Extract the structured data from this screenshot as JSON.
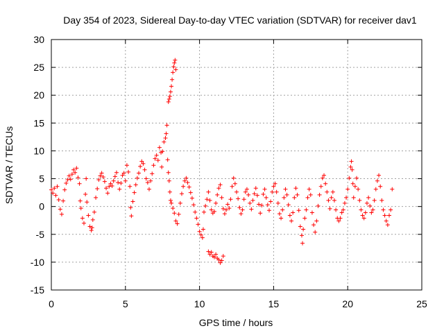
{
  "chart_data": {
    "type": "scatter",
    "title": "Day 354 of 2023, Sidereal Day-to-day VTEC variation (SDTVAR) for receiver dav1",
    "xlabel": "GPS time / hours",
    "ylabel": "SDTVAR / TECUs",
    "xlim": [
      0,
      25
    ],
    "ylim": [
      -15,
      30
    ],
    "xticks": [
      "0",
      "5",
      "10",
      "15",
      "20",
      "25"
    ],
    "yticks": [
      "-15",
      "-10",
      "-5",
      "0",
      "5",
      "10",
      "15",
      "20",
      "25",
      "30"
    ],
    "grid": true,
    "marker": "+",
    "color": "#ff0000",
    "series": [
      {
        "name": "SDTVAR",
        "points": [
          [
            0.0,
            3.0
          ],
          [
            0.1,
            2.4
          ],
          [
            0.2,
            3.3
          ],
          [
            0.3,
            2.0
          ],
          [
            0.4,
            3.6
          ],
          [
            0.5,
            1.2
          ],
          [
            0.6,
            -0.5
          ],
          [
            0.7,
            -1.4
          ],
          [
            0.8,
            1.0
          ],
          [
            0.9,
            3.0
          ],
          [
            1.0,
            4.2
          ],
          [
            1.1,
            4.8
          ],
          [
            1.2,
            5.5
          ],
          [
            1.3,
            4.9
          ],
          [
            1.4,
            5.8
          ],
          [
            1.5,
            6.6
          ],
          [
            1.6,
            6.1
          ],
          [
            1.7,
            6.9
          ],
          [
            1.8,
            5.2
          ],
          [
            1.9,
            4.1
          ],
          [
            1.95,
            1.0
          ],
          [
            2.0,
            -0.3
          ],
          [
            2.1,
            -2.1
          ],
          [
            2.2,
            -3.0
          ],
          [
            2.3,
            2.2
          ],
          [
            2.35,
            5.0
          ],
          [
            2.4,
            0.8
          ],
          [
            2.5,
            -1.6
          ],
          [
            2.6,
            -3.6
          ],
          [
            2.7,
            -4.3
          ],
          [
            2.75,
            -3.8
          ],
          [
            2.8,
            -2.4
          ],
          [
            2.9,
            -1.0
          ],
          [
            3.0,
            1.6
          ],
          [
            3.1,
            3.2
          ],
          [
            3.2,
            4.8
          ],
          [
            3.3,
            5.5
          ],
          [
            3.4,
            6.0
          ],
          [
            3.5,
            5.3
          ],
          [
            3.6,
            4.5
          ],
          [
            3.7,
            3.3
          ],
          [
            3.8,
            2.4
          ],
          [
            3.9,
            3.6
          ],
          [
            4.0,
            4.1
          ],
          [
            4.1,
            3.7
          ],
          [
            4.2,
            4.6
          ],
          [
            4.3,
            5.4
          ],
          [
            4.4,
            6.1
          ],
          [
            4.5,
            4.3
          ],
          [
            4.6,
            3.1
          ],
          [
            4.7,
            4.2
          ],
          [
            4.8,
            5.6
          ],
          [
            4.9,
            6.0
          ],
          [
            5.0,
            4.6
          ],
          [
            5.1,
            7.4
          ],
          [
            5.2,
            6.2
          ],
          [
            5.3,
            3.6
          ],
          [
            5.35,
            -0.2
          ],
          [
            5.4,
            -1.7
          ],
          [
            5.5,
            0.9
          ],
          [
            5.6,
            2.5
          ],
          [
            5.7,
            3.9
          ],
          [
            5.8,
            5.1
          ],
          [
            5.9,
            6.0
          ],
          [
            6.0,
            7.2
          ],
          [
            6.1,
            8.1
          ],
          [
            6.2,
            7.7
          ],
          [
            6.3,
            6.6
          ],
          [
            6.4,
            5.0
          ],
          [
            6.5,
            4.3
          ],
          [
            6.6,
            3.1
          ],
          [
            6.7,
            4.6
          ],
          [
            6.8,
            5.9
          ],
          [
            6.9,
            7.4
          ],
          [
            7.0,
            8.6
          ],
          [
            7.1,
            9.2
          ],
          [
            7.2,
            8.3
          ],
          [
            7.3,
            10.6
          ],
          [
            7.4,
            9.7
          ],
          [
            7.45,
            7.1
          ],
          [
            7.5,
            9.9
          ],
          [
            7.6,
            11.6
          ],
          [
            7.7,
            12.3
          ],
          [
            7.75,
            13.1
          ],
          [
            7.8,
            14.6
          ],
          [
            7.85,
            8.4
          ],
          [
            7.9,
            6.1
          ],
          [
            7.95,
            4.6
          ],
          [
            8.0,
            2.6
          ],
          [
            8.05,
            1.1
          ],
          [
            8.1,
            0.6
          ],
          [
            8.2,
            -0.3
          ],
          [
            8.3,
            -1.2
          ],
          [
            8.4,
            -2.6
          ],
          [
            8.5,
            -3.1
          ],
          [
            8.6,
            -1.4
          ],
          [
            8.7,
            0.6
          ],
          [
            8.8,
            2.3
          ],
          [
            8.9,
            3.6
          ],
          [
            9.0,
            4.6
          ],
          [
            9.1,
            5.1
          ],
          [
            9.2,
            4.3
          ],
          [
            9.3,
            3.5
          ],
          [
            9.4,
            2.5
          ],
          [
            9.5,
            1.5
          ],
          [
            9.6,
            0.3
          ],
          [
            9.7,
            -1.0
          ],
          [
            9.8,
            -2.1
          ],
          [
            9.9,
            -3.2
          ],
          [
            10.0,
            -4.5
          ],
          [
            10.1,
            -5.1
          ],
          [
            10.2,
            -5.6
          ],
          [
            10.25,
            -4.1
          ],
          [
            10.3,
            -1.0
          ],
          [
            10.4,
            0.1
          ],
          [
            10.5,
            1.3
          ],
          [
            10.6,
            2.6
          ],
          [
            10.7,
            1.1
          ],
          [
            10.8,
            -0.6
          ],
          [
            10.9,
            -1.2
          ],
          [
            11.0,
            -0.9
          ],
          [
            11.1,
            0.6
          ],
          [
            11.2,
            2.1
          ],
          [
            11.3,
            3.3
          ],
          [
            11.4,
            3.9
          ],
          [
            11.5,
            1.6
          ],
          [
            11.6,
            -0.4
          ],
          [
            11.7,
            -1.3
          ],
          [
            11.8,
            -0.6
          ],
          [
            11.9,
            0.4
          ],
          [
            12.0,
            -0.3
          ],
          [
            12.1,
            1.3
          ],
          [
            12.2,
            3.6
          ],
          [
            12.3,
            5.1
          ],
          [
            12.4,
            4.1
          ],
          [
            12.5,
            2.6
          ],
          [
            12.6,
            1.4
          ],
          [
            12.7,
            -0.2
          ],
          [
            12.8,
            -1.3
          ],
          [
            12.9,
            -0.6
          ],
          [
            13.0,
            1.3
          ],
          [
            13.1,
            2.6
          ],
          [
            13.2,
            3.1
          ],
          [
            13.3,
            2.1
          ],
          [
            13.4,
            0.6
          ],
          [
            13.5,
            -0.5
          ],
          [
            13.6,
            1.1
          ],
          [
            13.7,
            2.3
          ],
          [
            13.8,
            3.3
          ],
          [
            13.9,
            2.0
          ],
          [
            14.0,
            0.4
          ],
          [
            14.1,
            -1.2
          ],
          [
            14.2,
            0.2
          ],
          [
            14.3,
            2.2
          ],
          [
            14.4,
            3.1
          ],
          [
            14.5,
            1.6
          ],
          [
            14.6,
            0.3
          ],
          [
            14.7,
            -0.7
          ],
          [
            14.8,
            0.9
          ],
          [
            14.9,
            2.6
          ],
          [
            15.0,
            3.6
          ],
          [
            15.1,
            4.1
          ],
          [
            15.2,
            2.6
          ],
          [
            15.3,
            0.6
          ],
          [
            15.4,
            -1.3
          ],
          [
            15.5,
            -2.1
          ],
          [
            15.6,
            -0.6
          ],
          [
            15.7,
            1.6
          ],
          [
            15.8,
            3.1
          ],
          [
            15.9,
            2.1
          ],
          [
            16.0,
            0.3
          ],
          [
            16.1,
            -1.6
          ],
          [
            16.2,
            -2.6
          ],
          [
            16.3,
            -1.1
          ],
          [
            16.4,
            1.6
          ],
          [
            16.5,
            3.3
          ],
          [
            16.6,
            2.1
          ],
          [
            16.7,
            -0.7
          ],
          [
            16.8,
            -3.6
          ],
          [
            16.9,
            -5.2
          ],
          [
            16.95,
            -6.6
          ],
          [
            17.0,
            -4.1
          ],
          [
            17.1,
            -2.1
          ],
          [
            17.2,
            -0.6
          ],
          [
            17.3,
            1.6
          ],
          [
            17.4,
            3.1
          ],
          [
            17.5,
            2.1
          ],
          [
            17.6,
            -1.1
          ],
          [
            17.7,
            -3.3
          ],
          [
            17.8,
            -4.6
          ],
          [
            17.9,
            -2.6
          ],
          [
            18.0,
            0.1
          ],
          [
            18.1,
            2.1
          ],
          [
            18.2,
            3.6
          ],
          [
            18.3,
            5.1
          ],
          [
            18.4,
            5.6
          ],
          [
            18.5,
            4.1
          ],
          [
            18.6,
            2.6
          ],
          [
            18.7,
            1.1
          ],
          [
            18.8,
            -0.4
          ],
          [
            18.9,
            1.6
          ],
          [
            19.0,
            2.6
          ],
          [
            19.1,
            1.1
          ],
          [
            19.2,
            -0.6
          ],
          [
            19.3,
            -2.1
          ],
          [
            19.4,
            -2.6
          ],
          [
            19.5,
            -2.1
          ],
          [
            19.6,
            -1.1
          ],
          [
            19.7,
            -0.6
          ],
          [
            19.8,
            0.6
          ],
          [
            19.9,
            1.6
          ],
          [
            20.0,
            3.1
          ],
          [
            20.1,
            5.1
          ],
          [
            20.2,
            7.1
          ],
          [
            20.25,
            8.1
          ],
          [
            20.3,
            6.6
          ],
          [
            20.35,
            4.1
          ],
          [
            20.4,
            1.6
          ],
          [
            20.5,
            3.6
          ],
          [
            20.6,
            5.1
          ],
          [
            20.7,
            3.1
          ],
          [
            20.8,
            1.1
          ],
          [
            20.9,
            -0.6
          ],
          [
            21.0,
            -1.6
          ],
          [
            21.1,
            -2.1
          ],
          [
            21.2,
            -1.1
          ],
          [
            21.3,
            0.6
          ],
          [
            21.4,
            1.6
          ],
          [
            21.5,
            0.1
          ],
          [
            21.6,
            -1.1
          ],
          [
            21.7,
            -0.6
          ],
          [
            21.8,
            1.1
          ],
          [
            21.9,
            3.1
          ],
          [
            22.0,
            4.6
          ],
          [
            22.1,
            5.6
          ],
          [
            22.2,
            3.6
          ],
          [
            22.3,
            1.1
          ],
          [
            22.4,
            -0.6
          ],
          [
            22.5,
            -1.6
          ],
          [
            22.6,
            -2.6
          ],
          [
            22.7,
            -3.3
          ],
          [
            22.8,
            -1.6
          ],
          [
            22.9,
            -0.6
          ],
          [
            23.0,
            3.1
          ],
          [
            7.9,
            18.8
          ],
          [
            7.95,
            19.3
          ],
          [
            8.0,
            19.8
          ],
          [
            8.05,
            20.6
          ],
          [
            8.1,
            21.6
          ],
          [
            8.15,
            22.8
          ],
          [
            8.2,
            24.1
          ],
          [
            8.25,
            25.1
          ],
          [
            8.3,
            25.8
          ],
          [
            8.35,
            26.3
          ],
          [
            8.4,
            24.6
          ],
          [
            10.6,
            -8.1
          ],
          [
            10.7,
            -8.6
          ],
          [
            10.8,
            -8.2
          ],
          [
            10.9,
            -8.9
          ],
          [
            11.0,
            -9.1
          ],
          [
            11.1,
            -8.6
          ],
          [
            11.2,
            -9.3
          ],
          [
            11.3,
            -9.6
          ],
          [
            11.4,
            -10.1
          ],
          [
            11.5,
            -9.7
          ],
          [
            11.6,
            -8.9
          ]
        ]
      }
    ]
  }
}
